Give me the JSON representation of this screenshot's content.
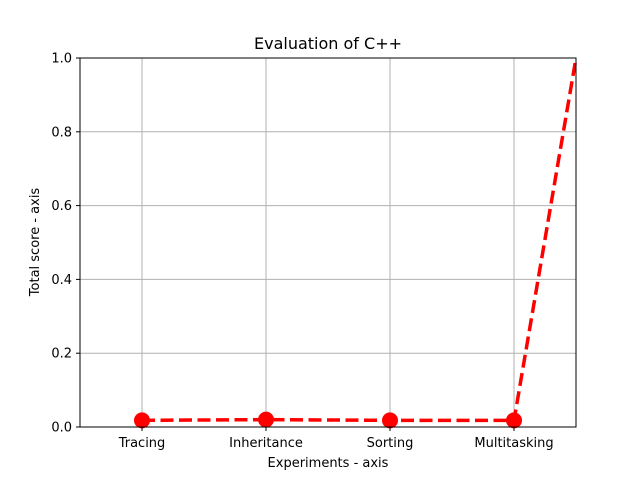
{
  "chart_data": {
    "type": "line",
    "title": "Evaluation of C++",
    "xlabel": "Experiments - axis",
    "ylabel": "Total score - axis",
    "categories": [
      "Tracing",
      "Inheritance",
      "Sorting",
      "Multitasking"
    ],
    "x": [
      0,
      1,
      2,
      3,
      3.5
    ],
    "series": [
      {
        "name": "",
        "values": [
          0.018,
          0.02,
          0.018,
          0.018,
          1.0
        ],
        "markers": [
          true,
          true,
          true,
          true,
          false
        ],
        "color": "#ff0000",
        "line_style": "dashed"
      }
    ],
    "xlim": [
      -0.5,
      3.5
    ],
    "ylim": [
      0,
      1.0
    ],
    "yticks": [
      "0.0",
      "0.2",
      "0.4",
      "0.6",
      "0.8",
      "1.0"
    ],
    "grid": true
  }
}
